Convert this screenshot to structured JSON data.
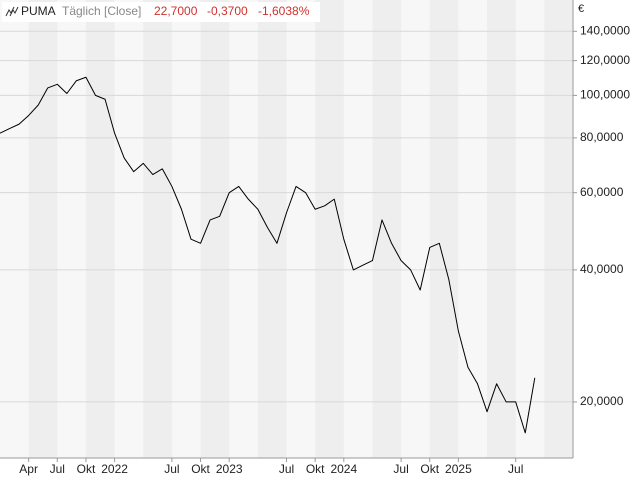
{
  "chart_data": {
    "type": "line",
    "title": "PUMA",
    "subtitle": "Täglich [Close]",
    "annotations": [
      "22,7000",
      "-0,3700",
      "-1,6038%"
    ],
    "y_unit": "€",
    "log_scale": true,
    "grid": true,
    "x": [
      "2021-01",
      "2021-02",
      "2021-03",
      "2021-04",
      "2021-05",
      "2021-06",
      "2021-07",
      "2021-08",
      "2021-09",
      "2021-10",
      "2021-11",
      "2021-12",
      "2022-01",
      "2022-02",
      "2022-03",
      "2022-04",
      "2022-05",
      "2022-06",
      "2022-07",
      "2022-08",
      "2022-09",
      "2022-10",
      "2022-11",
      "2022-12",
      "2023-01",
      "2023-02",
      "2023-03",
      "2023-04",
      "2023-05",
      "2023-06",
      "2023-07",
      "2023-08",
      "2023-09",
      "2023-10",
      "2023-11",
      "2023-12",
      "2024-01",
      "2024-02",
      "2024-03",
      "2024-04",
      "2024-05",
      "2024-06",
      "2024-07",
      "2024-08",
      "2024-09",
      "2024-10",
      "2024-11",
      "2024-12",
      "2025-01",
      "2025-02",
      "2025-03",
      "2025-04",
      "2025-05",
      "2025-06",
      "2025-07",
      "2025-08",
      "2025-09"
    ],
    "series": [
      {
        "name": "PUMA",
        "color": "#000000",
        "values": [
          82,
          84,
          86,
          90,
          95,
          104,
          106,
          101,
          108,
          110,
          100,
          98,
          82,
          72,
          67,
          70,
          66,
          68,
          62,
          55,
          47,
          46,
          52,
          53,
          60,
          62,
          58,
          55,
          50,
          46,
          54,
          62,
          60,
          55,
          56,
          58,
          47,
          40,
          41,
          42,
          52,
          46,
          42,
          40,
          36,
          45,
          46,
          38,
          29,
          24,
          22,
          19,
          22,
          20,
          20,
          17,
          22.7
        ]
      }
    ],
    "xlim": [
      "2021-01",
      "2026-01"
    ],
    "xticks": [
      {
        "value": "2021-04",
        "label": "Apr"
      },
      {
        "value": "2021-07",
        "label": "Jul"
      },
      {
        "value": "2021-10",
        "label": "Okt"
      },
      {
        "value": "2022-01",
        "label": "2022"
      },
      {
        "value": "2022-07",
        "label": "Jul"
      },
      {
        "value": "2022-10",
        "label": "Okt"
      },
      {
        "value": "2023-01",
        "label": "2023"
      },
      {
        "value": "2023-07",
        "label": "Jul"
      },
      {
        "value": "2023-10",
        "label": "Okt"
      },
      {
        "value": "2024-01",
        "label": "2024"
      },
      {
        "value": "2024-07",
        "label": "Jul"
      },
      {
        "value": "2024-10",
        "label": "Okt"
      },
      {
        "value": "2025-01",
        "label": "2025"
      },
      {
        "value": "2025-07",
        "label": "Jul"
      }
    ],
    "ylim": [
      14.9,
      165
    ],
    "yticks": [
      {
        "value": 20,
        "label": "20,0000"
      },
      {
        "value": 40,
        "label": "40,0000"
      },
      {
        "value": 60,
        "label": "60,0000"
      },
      {
        "value": 80,
        "label": "80,0000"
      },
      {
        "value": 100,
        "label": "100,0000"
      },
      {
        "value": 120,
        "label": "120,0000"
      },
      {
        "value": 140,
        "label": "140,0000"
      }
    ]
  }
}
